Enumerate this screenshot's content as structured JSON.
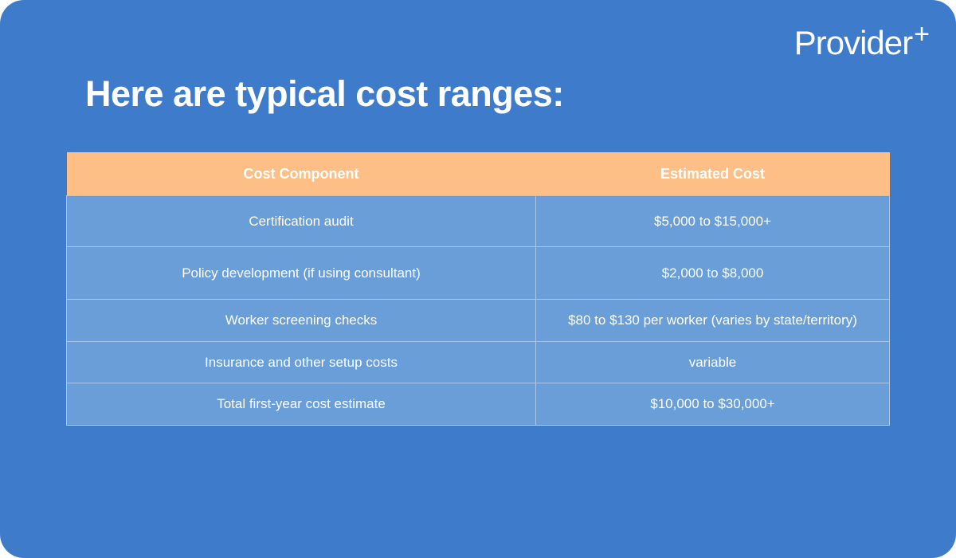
{
  "logo": {
    "name": "Provider",
    "mark": "+"
  },
  "title": "Here are typical cost ranges:",
  "table": {
    "header": [
      "Cost Component",
      "Estimated Cost"
    ],
    "rows": [
      [
        "Certification audit",
        "$5,000 to $15,000+"
      ],
      [
        "Policy development (if using consultant)",
        "$2,000 to $8,000"
      ],
      [
        "Worker screening checks",
        "$80 to $130 per worker (varies by state/territory)"
      ],
      [
        "Insurance and other setup costs",
        "variable"
      ],
      [
        "Total first-year cost estimate",
        "$10,000 to $30,000+"
      ]
    ]
  }
}
